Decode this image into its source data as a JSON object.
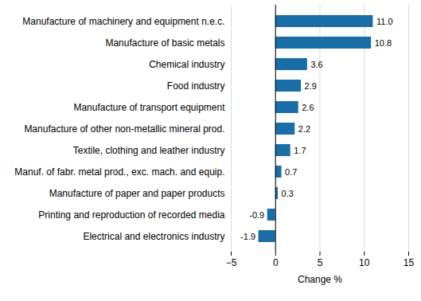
{
  "chart_data": {
    "type": "bar",
    "orientation": "horizontal",
    "categories": [
      "Manufacture of machinery and equipment n.e.c.",
      "Manufacture of basic metals",
      "Chemical industry",
      "Food industry",
      "Manufacture of transport equipment",
      "Manufacture of other non-metallic mineral prod.",
      "Textile, clothing and leather industry",
      "Manuf. of fabr. metal prod., exc. mach. and equip.",
      "Manufacture of paper and paper products",
      "Printing and reproduction of recorded media",
      "Electrical and electronics industry"
    ],
    "values": [
      11.0,
      10.8,
      3.6,
      2.9,
      2.6,
      2.2,
      1.7,
      0.7,
      0.3,
      -0.9,
      -1.9
    ],
    "value_labels": [
      "11.0",
      "10.8",
      "3.6",
      "2.9",
      "2.6",
      "2.2",
      "1.7",
      "0.7",
      "0.3",
      "-0.9",
      "-1.9"
    ],
    "color": "#1a6ea8",
    "xlabel": "Change %",
    "xlim": [
      -5,
      15
    ],
    "xticks": [
      -5,
      0,
      5,
      10,
      15
    ],
    "grid": true,
    "data_labels": true
  }
}
